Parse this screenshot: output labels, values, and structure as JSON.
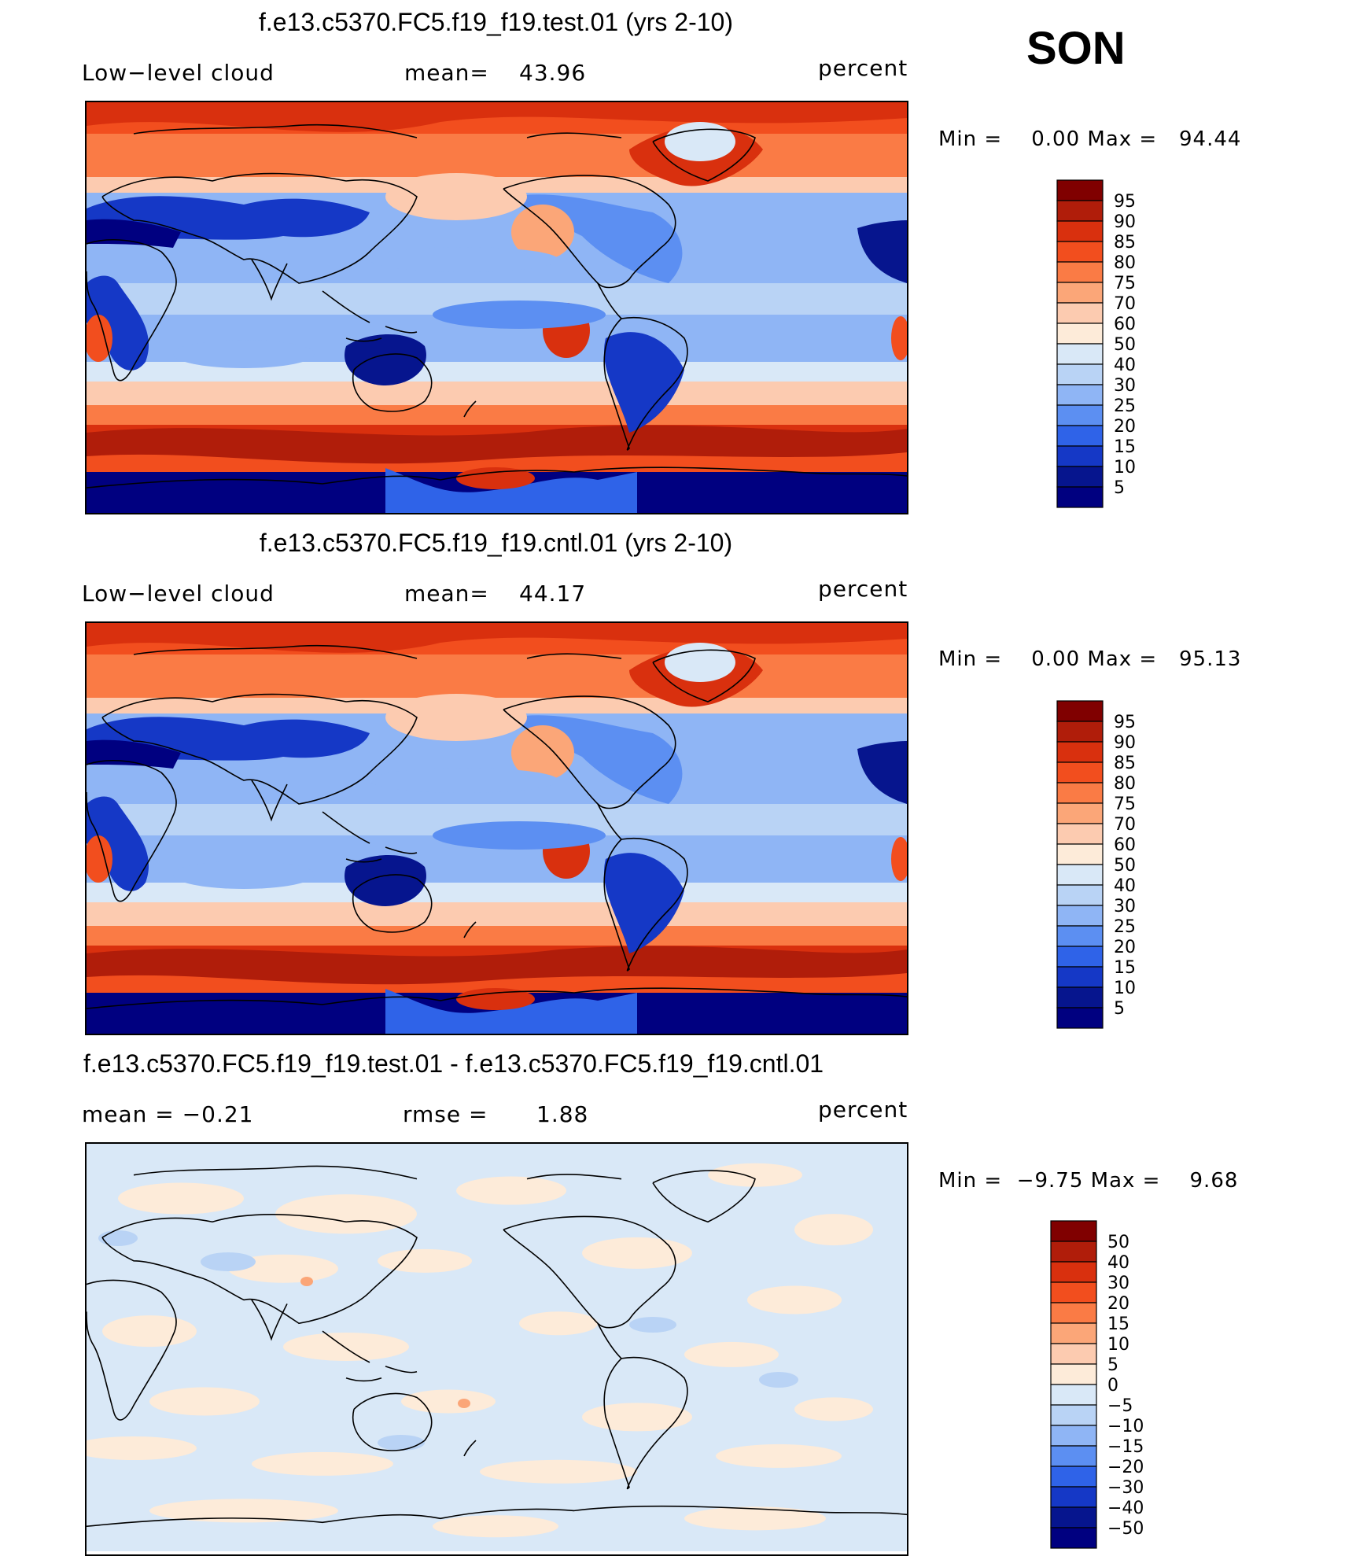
{
  "season": "SON",
  "panels": [
    {
      "title": "f.e13.c5370.FC5.f19_f19.test.01 (yrs 2-10)",
      "left": "Low−level cloud",
      "mid_label": "mean=",
      "mid_value": "43.96",
      "units": "percent",
      "minmax": "Min =    0.00 Max =   94.44",
      "levels": [
        "95",
        "90",
        "85",
        "80",
        "75",
        "70",
        "60",
        "50",
        "40",
        "30",
        "25",
        "20",
        "15",
        "10",
        "5"
      ],
      "colors": [
        "#800000",
        "#b01d0a",
        "#d9300e",
        "#f24e1e",
        "#fa7b45",
        "#fba678",
        "#fccbb0",
        "#fdebd9",
        "#d9e8f7",
        "#b9d3f5",
        "#8fb5f5",
        "#5c8ff2",
        "#2f63e8",
        "#1538c6",
        "#06158e",
        "#000080"
      ],
      "map_type": "abs"
    },
    {
      "title": "f.e13.c5370.FC5.f19_f19.cntl.01 (yrs 2-10)",
      "left": "Low−level cloud",
      "mid_label": "mean=",
      "mid_value": "44.17",
      "units": "percent",
      "minmax": "Min =    0.00 Max =   95.13",
      "levels": [
        "95",
        "90",
        "85",
        "80",
        "75",
        "70",
        "60",
        "50",
        "40",
        "30",
        "25",
        "20",
        "15",
        "10",
        "5"
      ],
      "colors": [
        "#800000",
        "#b01d0a",
        "#d9300e",
        "#f24e1e",
        "#fa7b45",
        "#fba678",
        "#fccbb0",
        "#fdebd9",
        "#d9e8f7",
        "#b9d3f5",
        "#8fb5f5",
        "#5c8ff2",
        "#2f63e8",
        "#1538c6",
        "#06158e",
        "#000080"
      ],
      "map_type": "abs"
    },
    {
      "title": "f.e13.c5370.FC5.f19_f19.test.01 - f.e13.c5370.FC5.f19_f19.cntl.01",
      "left": "mean =   −0.21",
      "mid_label": "rmse =",
      "mid_value": "1.88",
      "units": "percent",
      "minmax": "Min =  −9.75 Max =    9.68",
      "levels": [
        "50",
        "40",
        "30",
        "20",
        "15",
        "10",
        "5",
        "0",
        "−5",
        "−10",
        "−15",
        "−20",
        "−30",
        "−40",
        "−50"
      ],
      "colors": [
        "#800000",
        "#b01d0a",
        "#d9300e",
        "#f24e1e",
        "#fa7b45",
        "#fba678",
        "#fccbb0",
        "#fdebd9",
        "#d9e8f7",
        "#b9d3f5",
        "#8fb5f5",
        "#5c8ff2",
        "#2f63e8",
        "#1538c6",
        "#06158e",
        "#000080"
      ],
      "map_type": "diff"
    }
  ]
}
